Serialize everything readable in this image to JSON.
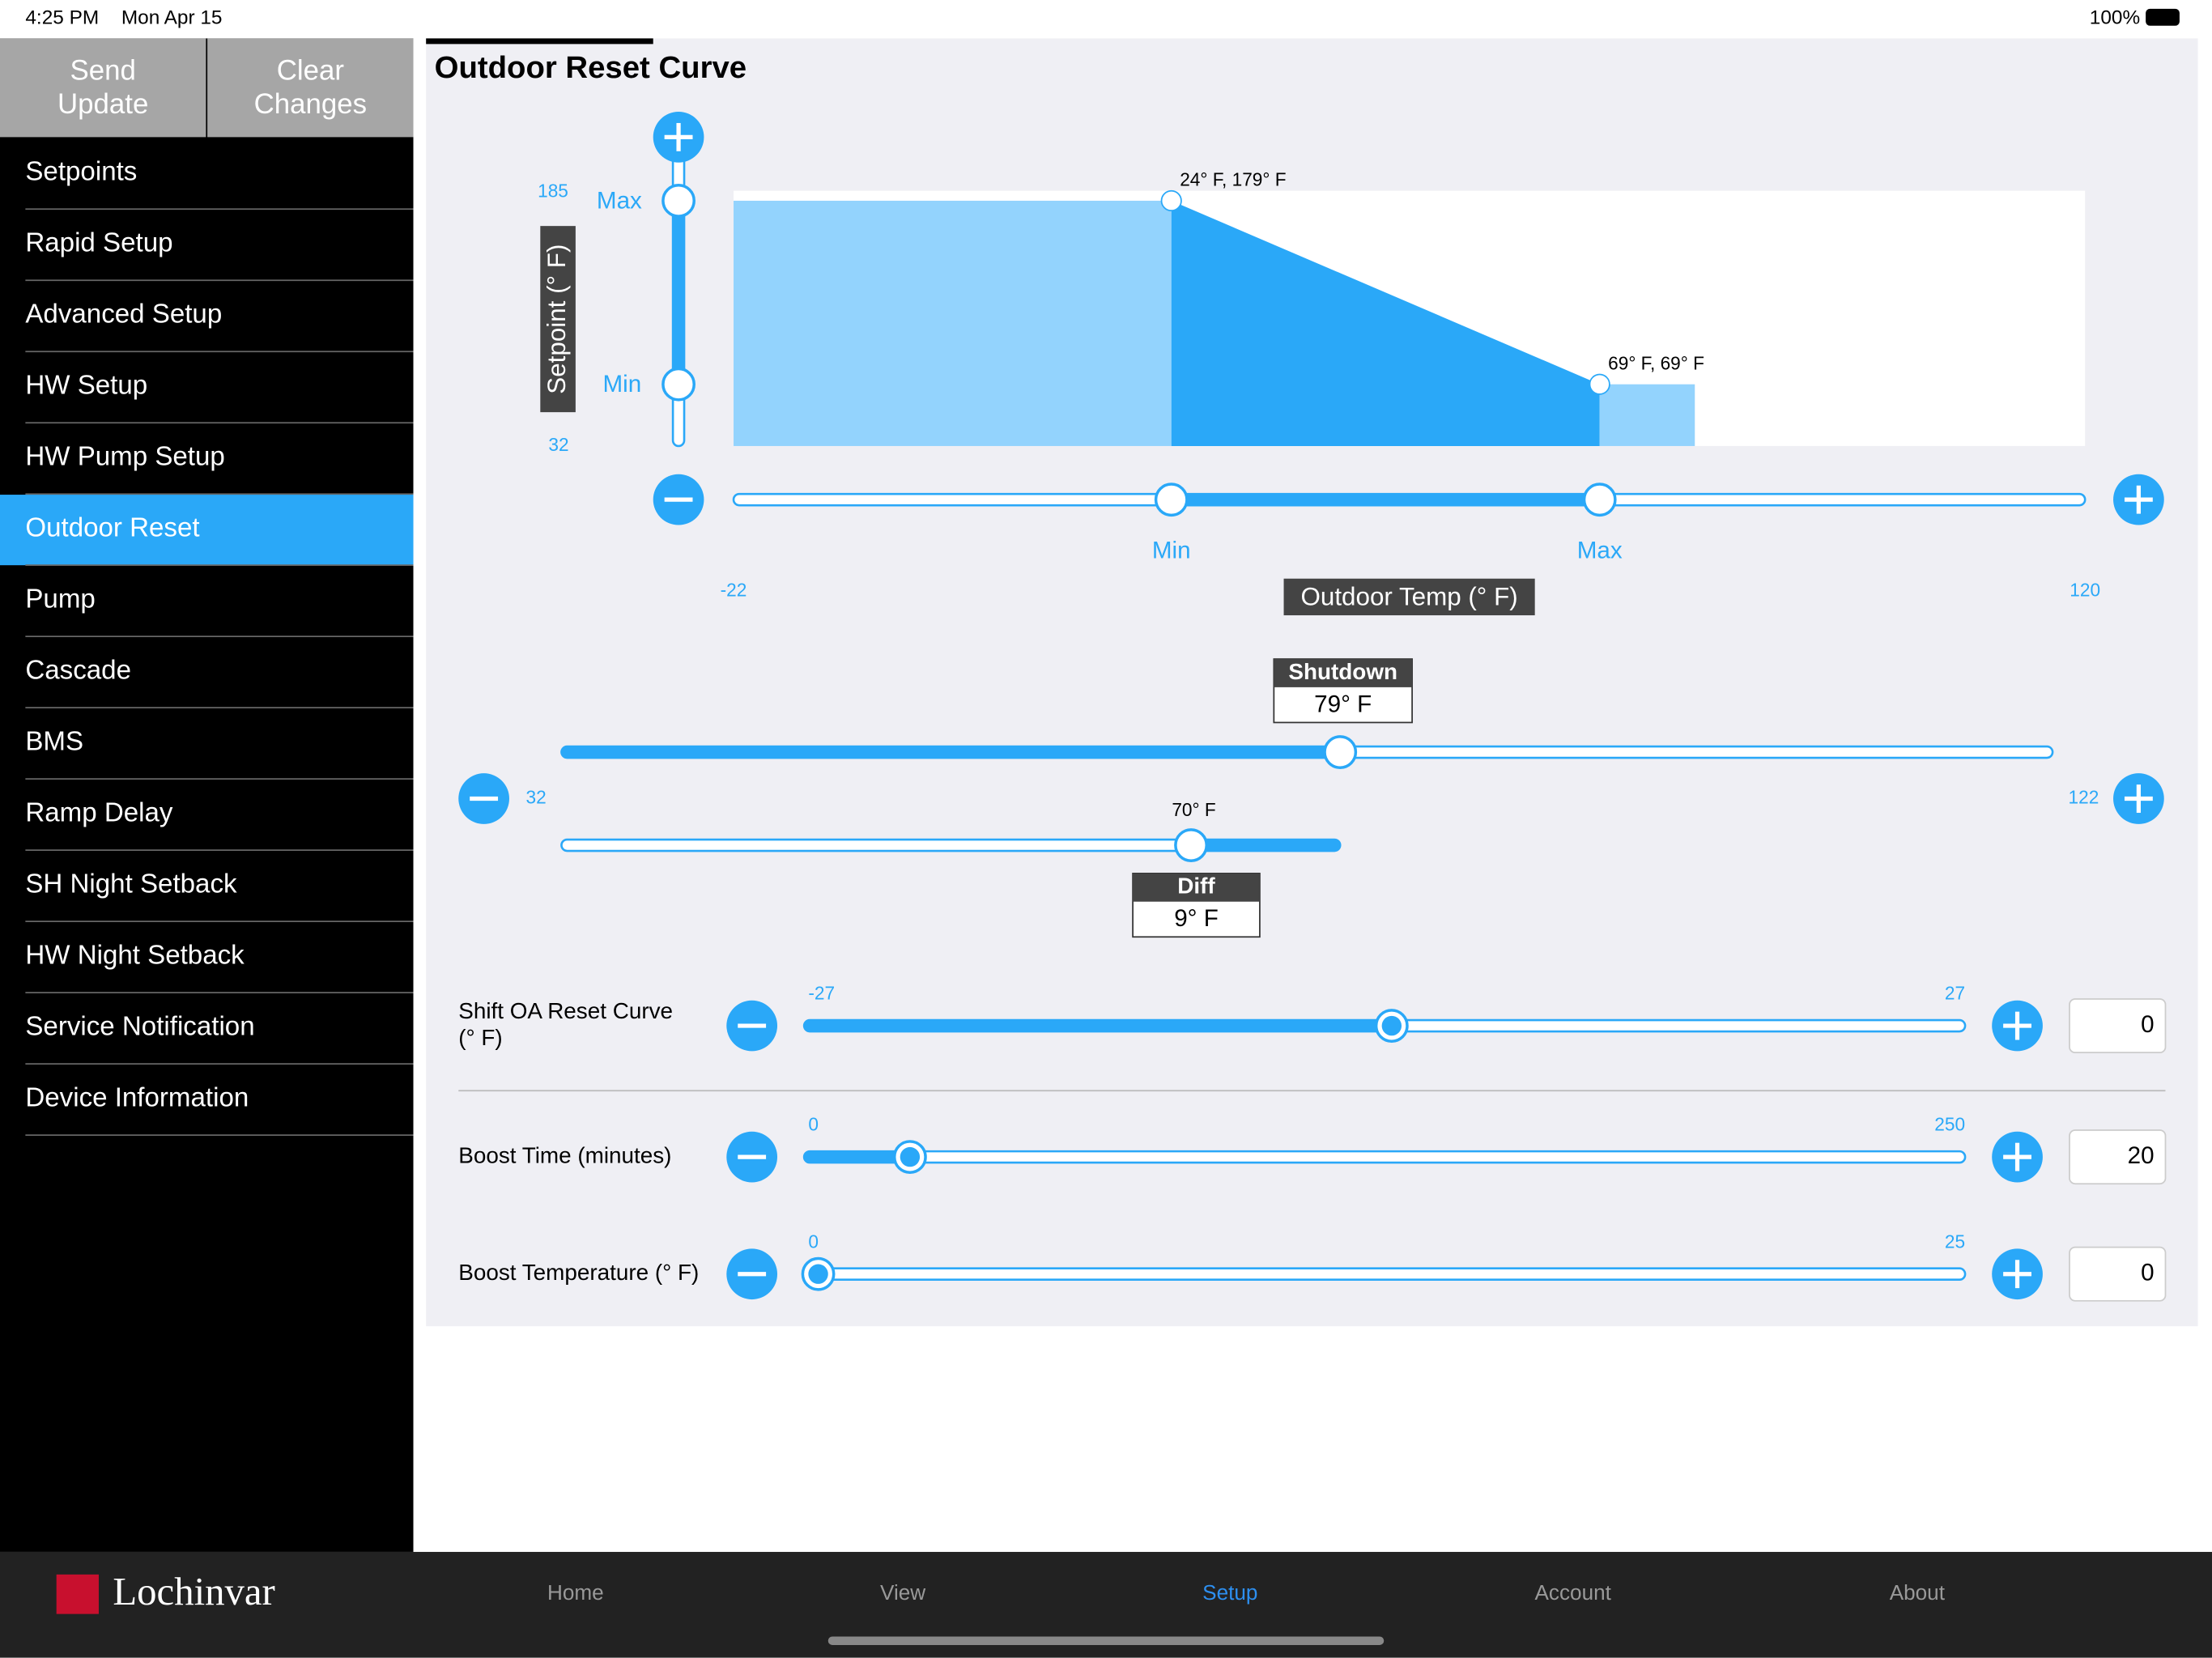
{
  "status": {
    "time": "4:25 PM",
    "date": "Mon Apr 15",
    "battery": "100%"
  },
  "sidebar": {
    "buttons": [
      [
        "Send",
        "Update"
      ],
      [
        "Clear",
        "Changes"
      ]
    ],
    "menu": [
      "Setpoints",
      "Rapid Setup",
      "Advanced Setup",
      "HW Setup",
      "HW Pump Setup",
      "Outdoor Reset",
      "Pump",
      "Cascade",
      "BMS",
      "Ramp Delay",
      "SH Night Setback",
      "HW Night Setback",
      "Service Notification",
      "Device Information"
    ],
    "selected": 5
  },
  "chart_data": {
    "type": "area",
    "title": "Outdoor Reset Curve",
    "x_label": "Outdoor Temp (° F)",
    "y_label": "Setpoint (° F)",
    "xlim": [
      -22,
      120
    ],
    "ylim": [
      32,
      185
    ],
    "points": [
      {
        "x": 24,
        "y": 179,
        "label": "24° F, 179° F"
      },
      {
        "x": 69,
        "y": 69,
        "label": "69° F, 69° F"
      }
    ],
    "min_label": "Min",
    "max_label": "Max",
    "colors": {
      "outer": "#93d3fd",
      "curve": "#2aa8f8"
    }
  },
  "shutdown": {
    "title": "Shutdown",
    "value": 79,
    "label": "79° F",
    "min": 32,
    "max": 122
  },
  "diff": {
    "title": "Diff",
    "value": 9,
    "label": "9° F",
    "setpoint": 70,
    "setpoint_label": "70° F"
  },
  "rows": [
    {
      "label": [
        "Shift OA Reset Curve",
        "(° F)"
      ],
      "min": -27,
      "max": 27,
      "value": 0
    },
    {
      "label": [
        "Boost Time (minutes)"
      ],
      "min": 0,
      "max": 250,
      "value": 20
    },
    {
      "label": [
        "Boost Temperature (° F)"
      ],
      "min": 0,
      "max": 25,
      "value": 0
    }
  ],
  "tabbar": {
    "brand": "Lochinvar",
    "tabs": [
      "Home",
      "View",
      "Setup",
      "Account",
      "About"
    ],
    "selected": 2
  }
}
